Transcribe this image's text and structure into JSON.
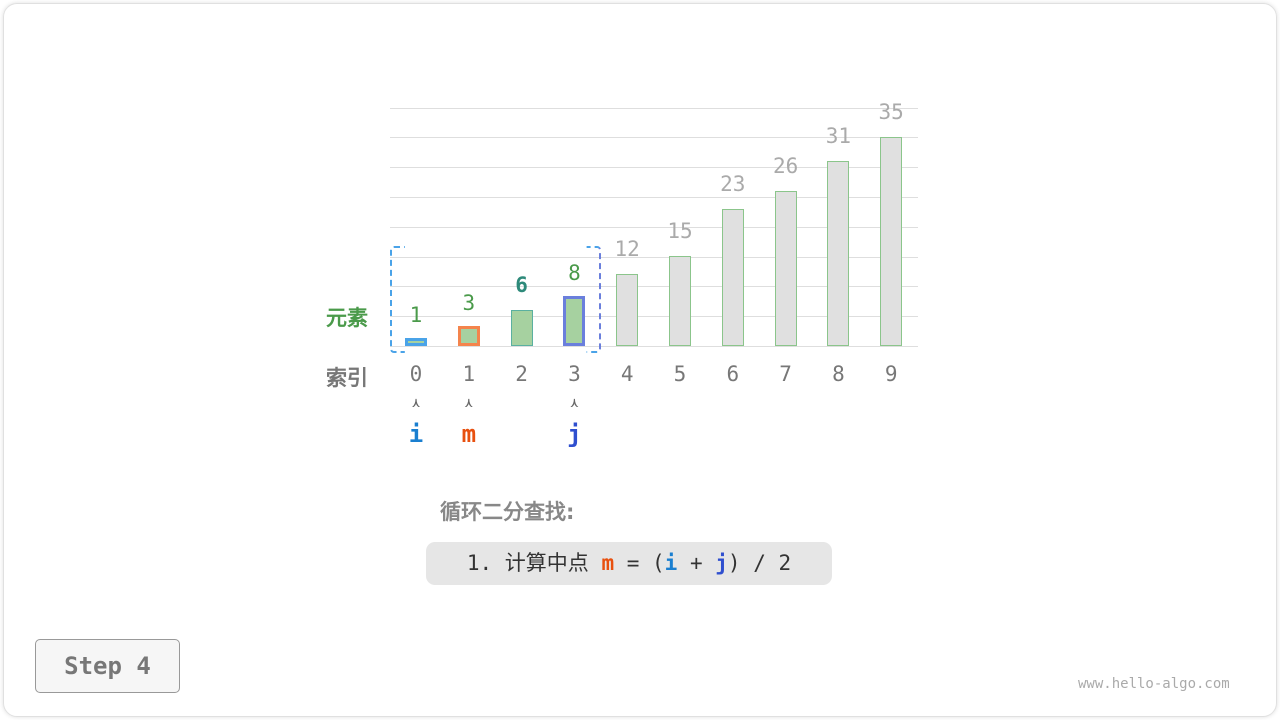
{
  "labels": {
    "element": "元素",
    "index": "索引"
  },
  "array": [
    1,
    3,
    6,
    8,
    12,
    15,
    23,
    26,
    31,
    35
  ],
  "indices": [
    "0",
    "1",
    "2",
    "3",
    "4",
    "5",
    "6",
    "7",
    "8",
    "9"
  ],
  "pointers": [
    {
      "name": "i",
      "index": 0,
      "color": "#1a7fd0"
    },
    {
      "name": "m",
      "index": 1,
      "color": "#e8500f"
    },
    {
      "name": "j",
      "index": 3,
      "color": "#2f4fcf"
    }
  ],
  "range": {
    "i": 0,
    "j": 3
  },
  "highlight": {
    "i_color": "#4aa3e8",
    "m_color": "#f4844c",
    "j_color": "#6a7fdc",
    "active_fill": "#a6d1a0",
    "active_text": "#4a9a4a",
    "mid_text": "#2e8a7a",
    "inactive_fill": "#e0e0e0",
    "inactive_text": "#aaaaaa"
  },
  "title": "循环二分查找:",
  "step_formula": {
    "prefix": "1. 计算中点 ",
    "m": "m",
    "eq": " = (",
    "i": "i",
    "plus": " + ",
    "j": "j",
    "suffix": ") / 2"
  },
  "step_button": "Step 4",
  "watermark": "www.hello-algo.com"
}
